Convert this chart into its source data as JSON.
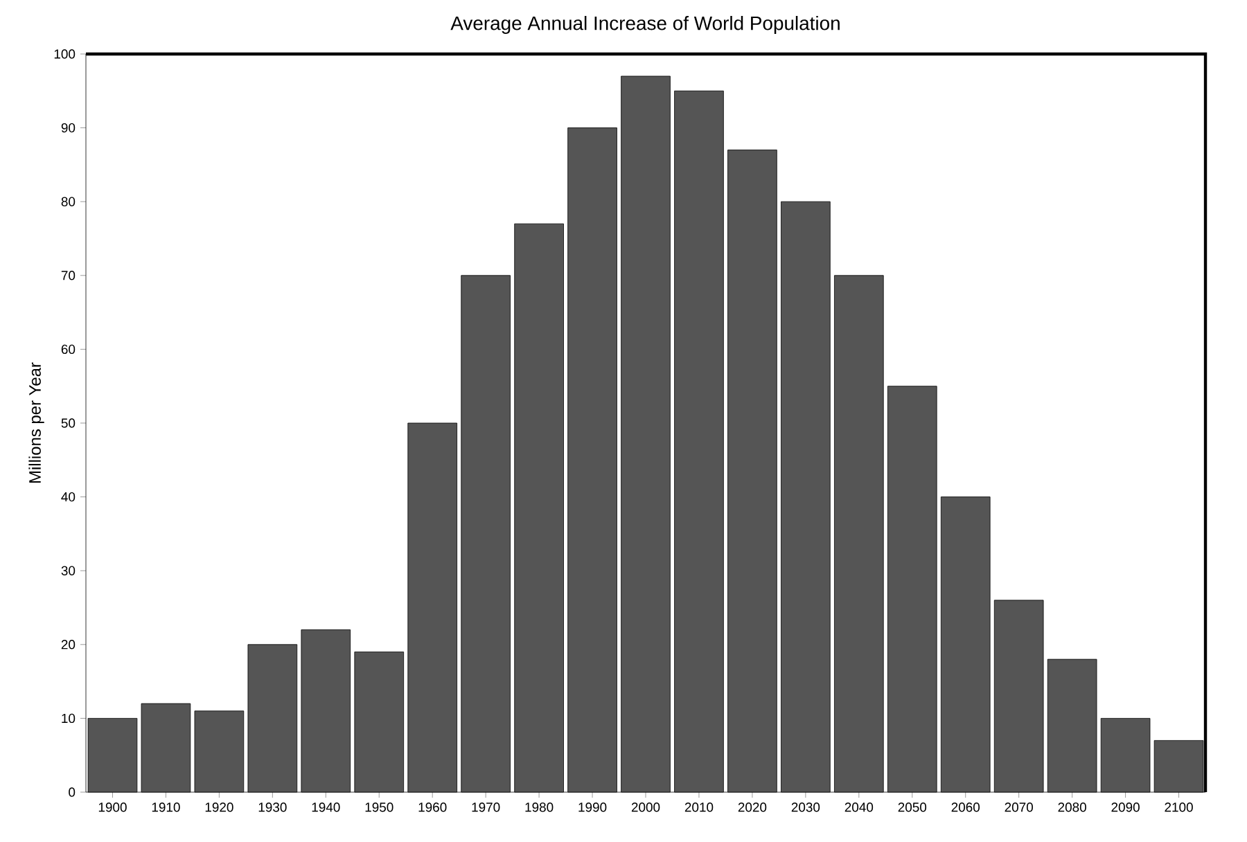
{
  "chart_data": {
    "type": "bar",
    "title": "Average Annual Increase of World Population",
    "ylabel": "Millions per Year",
    "categories": [
      "1900",
      "1910",
      "1920",
      "1930",
      "1940",
      "1950",
      "1960",
      "1970",
      "1980",
      "1990",
      "2000",
      "2010",
      "2020",
      "2030",
      "2040",
      "2050",
      "2060",
      "2070",
      "2080",
      "2090",
      "2100"
    ],
    "values": [
      10,
      12,
      11,
      20,
      22,
      19,
      50,
      70,
      77,
      90,
      97,
      95,
      87,
      80,
      70,
      55,
      40,
      26,
      18,
      10,
      7
    ],
    "color": "#555555",
    "ylim": [
      0,
      100
    ],
    "yticks": [
      0,
      10,
      20,
      30,
      40,
      50,
      60,
      70,
      80,
      90,
      100
    ]
  }
}
